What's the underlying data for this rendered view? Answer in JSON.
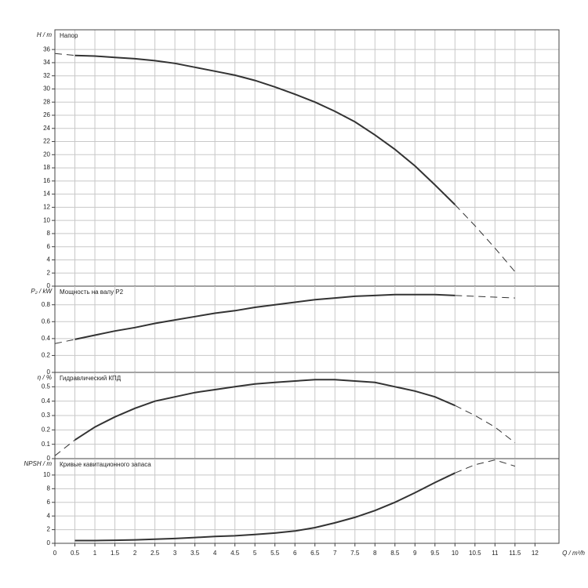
{
  "chart_data": [
    {
      "type": "line",
      "ylabel": "H / m",
      "title": "Напор",
      "x": [
        0,
        0.5,
        1,
        1.5,
        2,
        2.5,
        3,
        3.5,
        4,
        4.5,
        5,
        5.5,
        6,
        6.5,
        7,
        7.5,
        8,
        8.5,
        9,
        9.5,
        10,
        10.5,
        11,
        11.5
      ],
      "xlim": [
        0,
        12.6
      ],
      "ylim": [
        0,
        39
      ],
      "yticks": [
        0,
        2,
        4,
        6,
        8,
        10,
        12,
        14,
        16,
        18,
        20,
        22,
        24,
        26,
        28,
        30,
        32,
        34,
        36
      ],
      "grid": true,
      "series": [
        {
          "color": "#333333",
          "style": "solid",
          "values": [
            null,
            35.1,
            35.0,
            34.8,
            34.6,
            34.3,
            33.9,
            33.3,
            32.7,
            32.1,
            31.3,
            30.3,
            29.2,
            28.0,
            26.6,
            25.0,
            23.0,
            20.8,
            18.3,
            15.4,
            12.4,
            null,
            null,
            null
          ]
        },
        {
          "color": "#333333",
          "style": "dashed",
          "values": [
            35.4,
            35.1,
            null,
            null,
            null,
            null,
            null,
            null,
            null,
            null,
            null,
            null,
            null,
            null,
            null,
            null,
            null,
            null,
            null,
            null,
            12.4,
            9.2,
            5.8,
            2.2
          ]
        }
      ]
    },
    {
      "type": "line",
      "ylabel": "P₂ / kW",
      "title": "Мощность на валу P2",
      "x": [
        0,
        0.5,
        1,
        1.5,
        2,
        2.5,
        3,
        3.5,
        4,
        4.5,
        5,
        5.5,
        6,
        6.5,
        7,
        7.5,
        8,
        8.5,
        9,
        9.5,
        10,
        10.5,
        11,
        11.5
      ],
      "xlim": [
        0,
        12.6
      ],
      "ylim": [
        0,
        1.02
      ],
      "yticks": [
        0,
        0.2,
        0.4,
        0.6,
        0.8
      ],
      "grid": true,
      "series": [
        {
          "color": "#333333",
          "style": "solid",
          "values": [
            null,
            0.39,
            0.44,
            0.49,
            0.53,
            0.58,
            0.62,
            0.66,
            0.7,
            0.73,
            0.77,
            0.8,
            0.83,
            0.86,
            0.88,
            0.9,
            0.91,
            0.92,
            0.92,
            0.92,
            0.91,
            null,
            null,
            null
          ]
        },
        {
          "color": "#333333",
          "style": "dashed",
          "values": [
            0.34,
            0.39,
            null,
            null,
            null,
            null,
            null,
            null,
            null,
            null,
            null,
            null,
            null,
            null,
            null,
            null,
            null,
            null,
            null,
            null,
            0.91,
            0.9,
            0.89,
            0.88
          ]
        }
      ]
    },
    {
      "type": "line",
      "ylabel": "η / %",
      "title": "Гидравлический КПД",
      "x": [
        0,
        0.5,
        1,
        1.5,
        2,
        2.5,
        3,
        3.5,
        4,
        4.5,
        5,
        5.5,
        6,
        6.5,
        7,
        7.5,
        8,
        8.5,
        9,
        9.5,
        10,
        10.5,
        11,
        11.5
      ],
      "xlim": [
        0,
        12.6
      ],
      "ylim": [
        0,
        0.6
      ],
      "yticks": [
        0,
        0.1,
        0.2,
        0.3,
        0.4,
        0.5
      ],
      "grid": true,
      "series": [
        {
          "color": "#333333",
          "style": "solid",
          "values": [
            null,
            0.13,
            0.22,
            0.29,
            0.35,
            0.4,
            0.43,
            0.46,
            0.48,
            0.5,
            0.52,
            0.53,
            0.54,
            0.55,
            0.55,
            0.54,
            0.53,
            0.5,
            0.47,
            0.43,
            0.37,
            null,
            null,
            null
          ]
        },
        {
          "color": "#333333",
          "style": "dashed",
          "values": [
            0.02,
            0.13,
            null,
            null,
            null,
            null,
            null,
            null,
            null,
            null,
            null,
            null,
            null,
            null,
            null,
            null,
            null,
            null,
            null,
            null,
            0.37,
            0.3,
            0.22,
            0.11
          ]
        }
      ]
    },
    {
      "type": "line",
      "ylabel": "NPSH / m",
      "title": "Кривые кавитационного запаса",
      "xlabel": "Q / m³/h",
      "x": [
        0,
        0.5,
        1,
        1.5,
        2,
        2.5,
        3,
        3.5,
        4,
        4.5,
        5,
        5.5,
        6,
        6.5,
        7,
        7.5,
        8,
        8.5,
        9,
        9.5,
        10,
        10.5,
        11,
        11.5
      ],
      "xlim": [
        0,
        12.6
      ],
      "xticks": [
        0,
        0.5,
        1,
        1.5,
        2,
        2.5,
        3,
        3.5,
        4,
        4.5,
        5,
        5.5,
        6,
        6.5,
        7,
        7.5,
        8,
        8.5,
        9,
        9.5,
        10,
        10.5,
        11,
        11.5,
        12
      ],
      "ylim": [
        0,
        12.4
      ],
      "yticks": [
        0,
        2,
        4,
        6,
        8,
        10
      ],
      "grid": true,
      "series": [
        {
          "color": "#333333",
          "style": "solid",
          "values": [
            null,
            0.4,
            0.4,
            0.45,
            0.5,
            0.6,
            0.7,
            0.85,
            1.0,
            1.1,
            1.3,
            1.5,
            1.8,
            2.3,
            3.0,
            3.8,
            4.8,
            6.0,
            7.4,
            8.9,
            10.3,
            null,
            null,
            null
          ]
        },
        {
          "color": "#333333",
          "style": "dashed",
          "values": [
            null,
            null,
            null,
            null,
            null,
            null,
            null,
            null,
            null,
            null,
            null,
            null,
            null,
            null,
            null,
            null,
            null,
            null,
            null,
            null,
            10.3,
            11.5,
            12.2,
            11.3
          ]
        }
      ]
    }
  ]
}
